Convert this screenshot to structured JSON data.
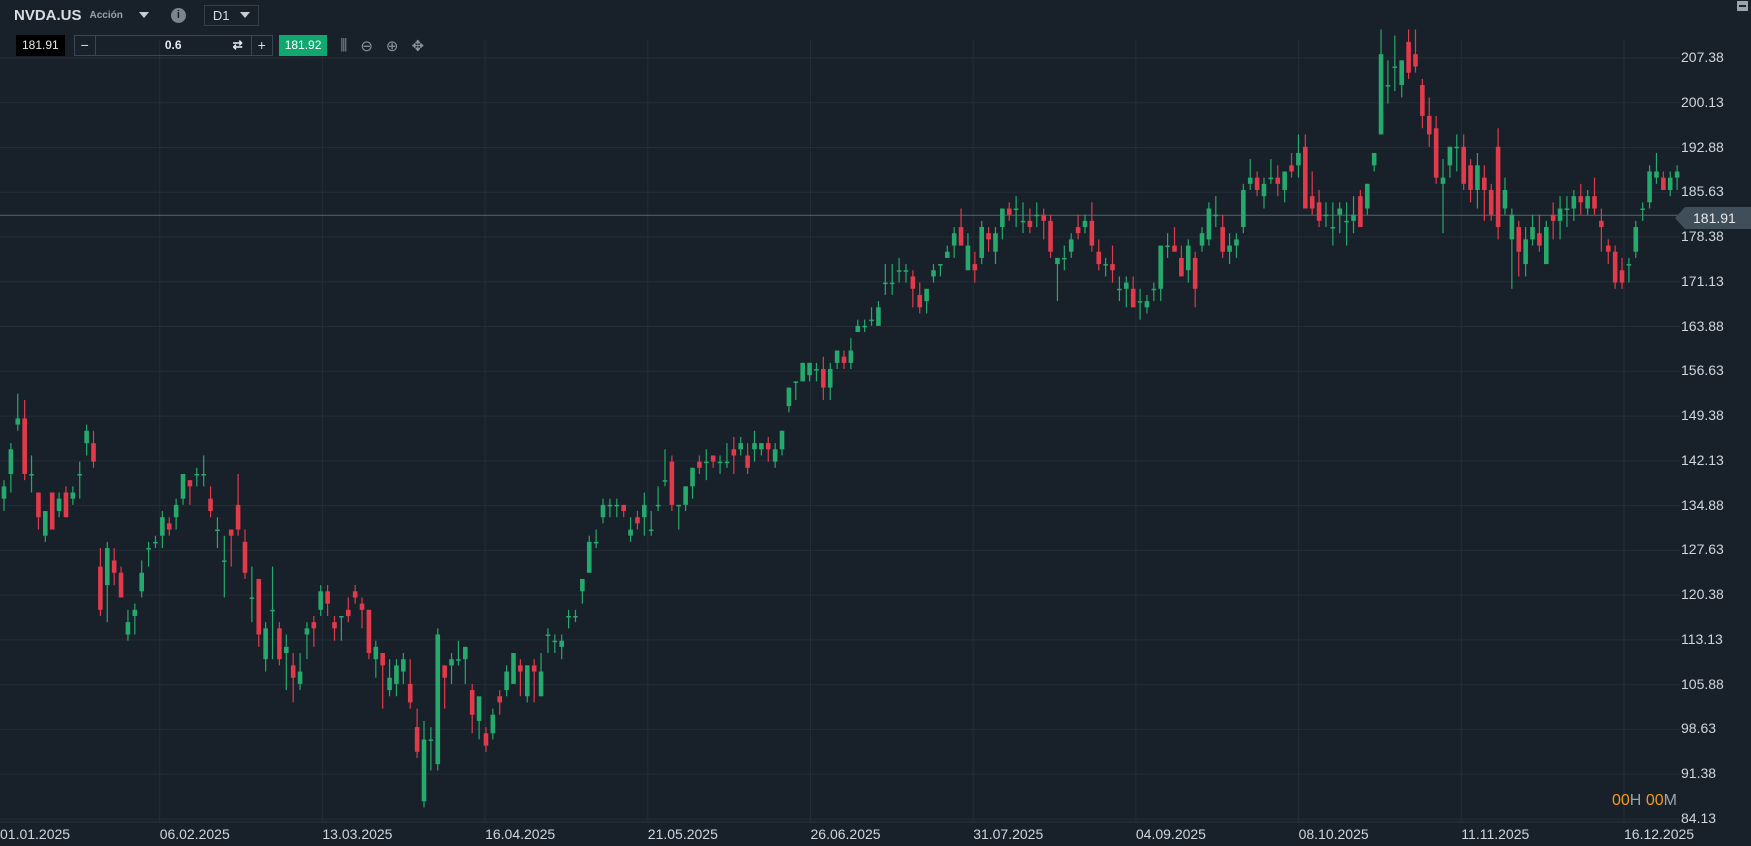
{
  "header": {
    "symbol": "NVDA.US",
    "type": "Acción",
    "timeframe": "D1",
    "info_icon": "info-icon"
  },
  "trade": {
    "bid": "181.91",
    "volume": "0.6",
    "ask": "181.92",
    "minus": "−",
    "plus": "+"
  },
  "tools": [
    "candle-type-icon",
    "zoom-out-icon",
    "zoom-in-icon",
    "move-icon"
  ],
  "timer": {
    "h": "00",
    "h_unit": "H",
    "m": "00",
    "m_unit": "M"
  },
  "colors": {
    "up": "#26a96c",
    "down": "#e13a4b",
    "background": "#18212a",
    "grid": "#232d37"
  },
  "chart_data": {
    "type": "candlestick",
    "y_ticks": [
      "207.38",
      "200.13",
      "192.88",
      "185.63",
      "178.38",
      "171.13",
      "163.88",
      "156.63",
      "149.38",
      "142.13",
      "134.88",
      "127.63",
      "120.38",
      "113.13",
      "105.88",
      "98.63",
      "91.38",
      "84.13"
    ],
    "ylim": [
      84.13,
      207.38
    ],
    "x_ticks": [
      "01.01.2025",
      "06.02.2025",
      "13.03.2025",
      "16.04.2025",
      "21.05.2025",
      "26.06.2025",
      "31.07.2025",
      "04.09.2025",
      "08.10.2025",
      "11.11.2025",
      "16.12.2025"
    ],
    "current_price": "181.91",
    "grid": true,
    "ohlc": [
      [
        136,
        139,
        134,
        138
      ],
      [
        140,
        145,
        137,
        144
      ],
      [
        148,
        153,
        147,
        149
      ],
      [
        149,
        152,
        139,
        140
      ],
      [
        140,
        143,
        137,
        140
      ],
      [
        137,
        137,
        131,
        133
      ],
      [
        130,
        134,
        129,
        134
      ],
      [
        137,
        137,
        132,
        131
      ],
      [
        134,
        137,
        133,
        136
      ],
      [
        137,
        138,
        133,
        133
      ],
      [
        136,
        138,
        135,
        137
      ],
      [
        140,
        142,
        136,
        140
      ],
      [
        145,
        148,
        143,
        147
      ],
      [
        145,
        147,
        141,
        142
      ],
      [
        125,
        128,
        117,
        118
      ],
      [
        122,
        129,
        116,
        128
      ],
      [
        126,
        128,
        122,
        124
      ],
      [
        124,
        125,
        120,
        120
      ],
      [
        114,
        118,
        113,
        116
      ],
      [
        117,
        119,
        114,
        118
      ],
      [
        121,
        126,
        120,
        124
      ],
      [
        128,
        129,
        125,
        128
      ],
      [
        129,
        130,
        128,
        129
      ],
      [
        130,
        134,
        128,
        133
      ],
      [
        132,
        133,
        130,
        131
      ],
      [
        133,
        136,
        131,
        135
      ],
      [
        136,
        140,
        135,
        140
      ],
      [
        139,
        139,
        135,
        138
      ],
      [
        140,
        141,
        138,
        140
      ],
      [
        140,
        143,
        138,
        140
      ],
      [
        136,
        138,
        133,
        134
      ],
      [
        131,
        133,
        128,
        131
      ],
      [
        126,
        130,
        120,
        126
      ],
      [
        131,
        131,
        125,
        130
      ],
      [
        135,
        140,
        130,
        131
      ],
      [
        129,
        131,
        123,
        124
      ],
      [
        120,
        125,
        116,
        120
      ],
      [
        123,
        123,
        112,
        114
      ],
      [
        110,
        116,
        108,
        115
      ],
      [
        118,
        125,
        110,
        118
      ],
      [
        115,
        116,
        109,
        110
      ],
      [
        111,
        114,
        105,
        112
      ],
      [
        109,
        111,
        103,
        107
      ],
      [
        106,
        111,
        105,
        108
      ],
      [
        114,
        116,
        110,
        115
      ],
      [
        116,
        117,
        112,
        115
      ],
      [
        118,
        122,
        117,
        121
      ],
      [
        121,
        122,
        117,
        119
      ],
      [
        116,
        117,
        113,
        115
      ],
      [
        117,
        117,
        113,
        117
      ],
      [
        118,
        120,
        116,
        117
      ],
      [
        121,
        122,
        119,
        120
      ],
      [
        119,
        120,
        115,
        118
      ],
      [
        118,
        118,
        110,
        111
      ],
      [
        110,
        113,
        107,
        112
      ],
      [
        111,
        111,
        102,
        109
      ],
      [
        105,
        110,
        104,
        107
      ],
      [
        106,
        110,
        104,
        109
      ],
      [
        108,
        111,
        106,
        110
      ],
      [
        106,
        110,
        102,
        103
      ],
      [
        99,
        102,
        94,
        95
      ],
      [
        87,
        100,
        86,
        97
      ],
      [
        97,
        99,
        92,
        97
      ],
      [
        93,
        115,
        92,
        114
      ],
      [
        109,
        109,
        102,
        107
      ],
      [
        109,
        111,
        106,
        110
      ],
      [
        110,
        113,
        109,
        110
      ],
      [
        110,
        112,
        106,
        112
      ],
      [
        105,
        106,
        98,
        101
      ],
      [
        100,
        103,
        97,
        104
      ],
      [
        98,
        99,
        95,
        96
      ],
      [
        98,
        102,
        97,
        101
      ],
      [
        104,
        105,
        101,
        103
      ],
      [
        105,
        109,
        104,
        108
      ],
      [
        106,
        111,
        106,
        111
      ],
      [
        109,
        110,
        104,
        108
      ],
      [
        104,
        109,
        103,
        109
      ],
      [
        109,
        110,
        103,
        108
      ],
      [
        104,
        111,
        104,
        108
      ],
      [
        114,
        115,
        111,
        114
      ],
      [
        113,
        114,
        111,
        113
      ],
      [
        112,
        114,
        110,
        113
      ],
      [
        117,
        118,
        115,
        117
      ],
      [
        117,
        118,
        116,
        117
      ],
      [
        121,
        123,
        119,
        123
      ],
      [
        124,
        130,
        124,
        129
      ],
      [
        129,
        131,
        128,
        129
      ],
      [
        133,
        136,
        132,
        135
      ],
      [
        135,
        136,
        133,
        135
      ],
      [
        135,
        136,
        133,
        135
      ],
      [
        135,
        135,
        133,
        134
      ],
      [
        130,
        133,
        129,
        131
      ],
      [
        133,
        134,
        131,
        132
      ],
      [
        133,
        137,
        130,
        135
      ],
      [
        131,
        134,
        130,
        131
      ],
      [
        135,
        138,
        134,
        135
      ],
      [
        139,
        144,
        138,
        139
      ],
      [
        142,
        143,
        134,
        135
      ],
      [
        135,
        135,
        131,
        135
      ],
      [
        135,
        138,
        134,
        138
      ],
      [
        138,
        141,
        136,
        141
      ],
      [
        142,
        143,
        140,
        141
      ],
      [
        142,
        144,
        139,
        142
      ],
      [
        143,
        143,
        141,
        142
      ],
      [
        142,
        143,
        140,
        142
      ],
      [
        142,
        145,
        141,
        142
      ],
      [
        144,
        146,
        140,
        143
      ],
      [
        144,
        146,
        143,
        145
      ],
      [
        143,
        145,
        140,
        141
      ],
      [
        144,
        147,
        142,
        145
      ],
      [
        144,
        145,
        143,
        145
      ],
      [
        145,
        146,
        142,
        144
      ],
      [
        142,
        145,
        141,
        144
      ],
      [
        144,
        147,
        143,
        147
      ],
      [
        151,
        154,
        150,
        154
      ],
      [
        155,
        155,
        152,
        155
      ],
      [
        155,
        158,
        155,
        158
      ],
      [
        156,
        158,
        155,
        158
      ],
      [
        157,
        158,
        155,
        157
      ],
      [
        157,
        159,
        152,
        154
      ],
      [
        154,
        158,
        152,
        157
      ],
      [
        158,
        160,
        157,
        160
      ],
      [
        159,
        160,
        157,
        158
      ],
      [
        158,
        162,
        157,
        160
      ],
      [
        163,
        165,
        163,
        164
      ],
      [
        164,
        165,
        163,
        164
      ],
      [
        165,
        167,
        164,
        165
      ],
      [
        164,
        168,
        164,
        167
      ],
      [
        171,
        174,
        169,
        171
      ],
      [
        171,
        174,
        169,
        171
      ],
      [
        173,
        175,
        171,
        173
      ],
      [
        173,
        174,
        171,
        173
      ],
      [
        172,
        173,
        167,
        170
      ],
      [
        169,
        171,
        166,
        167
      ],
      [
        168,
        170,
        166,
        170
      ],
      [
        172,
        174,
        171,
        173
      ],
      [
        174,
        174,
        172,
        174
      ],
      [
        175,
        177,
        175,
        176
      ],
      [
        177,
        180,
        175,
        179
      ],
      [
        180,
        183,
        177,
        177
      ],
      [
        173,
        179,
        173,
        177
      ],
      [
        174,
        176,
        171,
        173
      ],
      [
        175,
        181,
        174,
        180
      ],
      [
        179,
        180,
        176,
        178
      ],
      [
        176,
        180,
        174,
        179
      ],
      [
        180,
        183,
        178,
        183
      ],
      [
        183,
        184,
        181,
        182
      ],
      [
        183,
        185,
        180,
        183
      ],
      [
        181,
        184,
        179,
        181
      ],
      [
        181,
        183,
        179,
        180
      ],
      [
        182,
        184,
        180,
        182
      ],
      [
        182,
        183,
        178,
        181
      ],
      [
        181,
        182,
        175,
        176
      ],
      [
        174,
        175,
        168,
        175
      ],
      [
        175,
        177,
        173,
        175
      ],
      [
        176,
        179,
        175,
        178
      ],
      [
        180,
        182,
        178,
        179
      ],
      [
        180,
        182,
        179,
        181
      ],
      [
        181,
        184,
        176,
        177
      ],
      [
        176,
        178,
        173,
        174
      ],
      [
        174,
        175,
        172,
        174
      ],
      [
        174,
        177,
        171,
        173
      ],
      [
        170,
        172,
        168,
        170
      ],
      [
        170,
        172,
        167,
        171
      ],
      [
        170,
        172,
        167,
        167
      ],
      [
        168,
        170,
        165,
        168
      ],
      [
        167,
        169,
        166,
        168
      ],
      [
        170,
        171,
        168,
        170
      ],
      [
        170,
        176,
        168,
        177
      ],
      [
        177,
        179,
        175,
        177
      ],
      [
        177,
        180,
        176,
        176
      ],
      [
        175,
        177,
        172,
        172
      ],
      [
        173,
        178,
        171,
        177
      ],
      [
        175,
        176,
        167,
        170
      ],
      [
        177,
        180,
        176,
        179
      ],
      [
        178,
        184,
        177,
        183
      ],
      [
        182,
        185,
        180,
        182
      ],
      [
        180,
        182,
        175,
        176
      ],
      [
        176,
        179,
        174,
        177
      ],
      [
        177,
        179,
        175,
        178
      ],
      [
        180,
        187,
        179,
        186
      ],
      [
        187,
        191,
        186,
        188
      ],
      [
        188,
        189,
        185,
        186
      ],
      [
        185,
        188,
        183,
        187
      ],
      [
        188,
        191,
        187,
        188
      ],
      [
        188,
        190,
        185,
        187
      ],
      [
        186,
        189,
        184,
        189
      ],
      [
        190,
        192,
        188,
        189
      ],
      [
        190,
        195,
        188,
        192
      ],
      [
        193,
        195,
        183,
        183
      ],
      [
        185,
        189,
        182,
        183
      ],
      [
        184,
        186,
        180,
        181
      ],
      [
        182,
        184,
        180,
        182
      ],
      [
        180,
        184,
        177,
        180
      ],
      [
        182,
        184,
        179,
        183
      ],
      [
        181,
        184,
        177,
        181
      ],
      [
        181,
        185,
        179,
        182
      ],
      [
        185,
        186,
        180,
        180
      ],
      [
        183,
        187,
        182,
        187
      ],
      [
        190,
        192,
        189,
        192
      ],
      [
        195,
        212,
        195,
        208
      ],
      [
        203,
        207,
        200,
        203
      ],
      [
        206,
        211,
        202,
        206
      ],
      [
        203,
        207,
        201,
        207
      ],
      [
        210,
        212,
        204,
        205
      ],
      [
        208,
        212,
        205,
        206
      ],
      [
        203,
        204,
        196,
        198
      ],
      [
        198,
        201,
        193,
        195
      ],
      [
        196,
        198,
        187,
        188
      ],
      [
        187,
        191,
        179,
        188
      ],
      [
        190,
        193,
        188,
        193
      ],
      [
        193,
        195,
        189,
        193
      ],
      [
        193,
        195,
        186,
        187
      ],
      [
        190,
        191,
        184,
        186
      ],
      [
        186,
        192,
        183,
        190
      ],
      [
        188,
        190,
        181,
        186
      ],
      [
        186,
        187,
        181,
        182
      ],
      [
        193,
        196,
        178,
        180
      ],
      [
        183,
        188,
        182,
        186
      ],
      [
        178,
        183,
        170,
        182
      ],
      [
        180,
        181,
        172,
        176
      ],
      [
        174,
        180,
        172,
        178
      ],
      [
        178,
        182,
        177,
        180
      ],
      [
        179,
        182,
        176,
        177
      ],
      [
        174,
        181,
        174,
        180
      ],
      [
        182,
        184,
        178,
        181
      ],
      [
        181,
        185,
        178,
        183
      ],
      [
        183,
        185,
        180,
        183
      ],
      [
        183,
        186,
        181,
        185
      ],
      [
        185,
        187,
        182,
        184
      ],
      [
        183,
        186,
        182,
        185
      ],
      [
        185,
        188,
        182,
        183
      ],
      [
        181,
        183,
        176,
        180
      ],
      [
        177,
        178,
        174,
        176
      ],
      [
        176,
        177,
        170,
        171
      ],
      [
        173,
        175,
        170,
        171
      ],
      [
        174,
        175,
        171,
        174
      ],
      [
        176,
        181,
        175,
        180
      ],
      [
        183,
        184,
        181,
        183
      ],
      [
        184,
        190,
        183,
        189
      ],
      [
        188,
        192,
        187,
        189
      ],
      [
        188,
        189,
        186,
        186
      ],
      [
        186,
        189,
        185,
        188
      ],
      [
        188,
        190,
        186,
        189
      ]
    ]
  }
}
